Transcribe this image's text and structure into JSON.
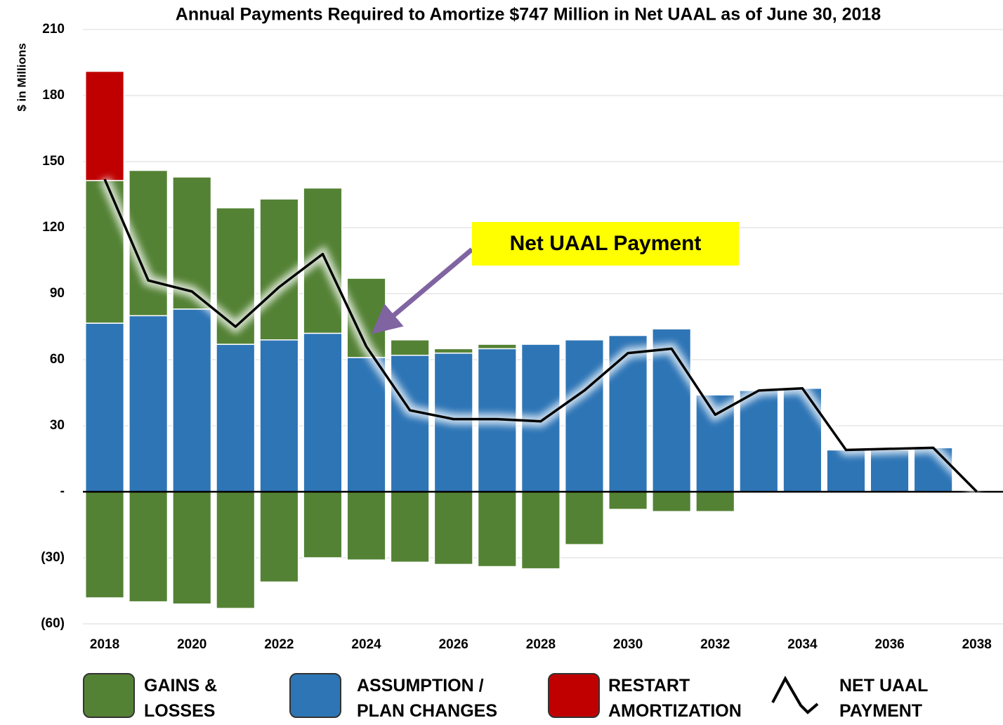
{
  "chart_data": {
    "type": "stacked_bar_line",
    "title": "Annual Payments Required to Amortize $747 Million  in Net UAAL as of June 30, 2018",
    "y_label": "$ in Millions",
    "annotation": "Net UAAL Payment",
    "x": [
      2018,
      2019,
      2020,
      2021,
      2022,
      2023,
      2024,
      2025,
      2026,
      2027,
      2028,
      2029,
      2030,
      2031,
      2032,
      2033,
      2034,
      2035,
      2036,
      2037,
      2038
    ],
    "xlim": [
      2017.5,
      2038.6
    ],
    "xticks": [
      2018,
      2020,
      2022,
      2024,
      2026,
      2028,
      2030,
      2032,
      2034,
      2036,
      2038
    ],
    "ylim": [
      -60,
      210
    ],
    "yticks": [
      210,
      180,
      150,
      120,
      90,
      60,
      30,
      {
        "value": 0,
        "label": "-"
      },
      {
        "value": -30,
        "label": "(30)"
      },
      {
        "value": -60,
        "label": "(60)"
      }
    ],
    "grid": true,
    "series": [
      {
        "name": "ASSUMPTION / PLAN CHANGES",
        "color": "#2e75b6",
        "values": [
          76.6,
          80,
          83,
          67,
          69,
          72,
          61,
          62,
          63,
          65,
          67,
          69,
          71,
          74,
          44,
          46,
          47,
          19,
          19,
          20,
          0
        ]
      },
      {
        "name": "GAINS & LOSSES",
        "color": "#548235",
        "values": [
          64.8,
          66,
          60,
          62,
          64,
          66,
          36,
          7,
          2,
          2,
          0,
          0,
          0,
          0,
          0,
          0,
          0,
          0,
          0,
          0,
          0
        ]
      },
      {
        "name": "RESTART AMORTIZATION",
        "color": "#c00000",
        "values": [
          49.6,
          0,
          0,
          0,
          0,
          0,
          0,
          0,
          0,
          0,
          0,
          0,
          0,
          0,
          0,
          0,
          0,
          0,
          0,
          0,
          0
        ]
      },
      {
        "color": "#548235",
        "values": [
          -48.2,
          -50,
          -51,
          -53,
          -41,
          -30,
          -31,
          -32,
          -33,
          -34,
          -35,
          -24,
          -8,
          -9,
          -9,
          0,
          0,
          0,
          0,
          0,
          0
        ]
      }
    ],
    "line": {
      "name": "NET UAAL PAYMENT",
      "color": "#000000",
      "values": [
        142,
        96,
        91,
        75,
        93,
        108,
        66,
        37,
        33,
        33,
        32,
        46,
        63,
        65,
        35,
        46,
        47,
        19,
        19.5,
        20,
        0
      ]
    }
  }
}
